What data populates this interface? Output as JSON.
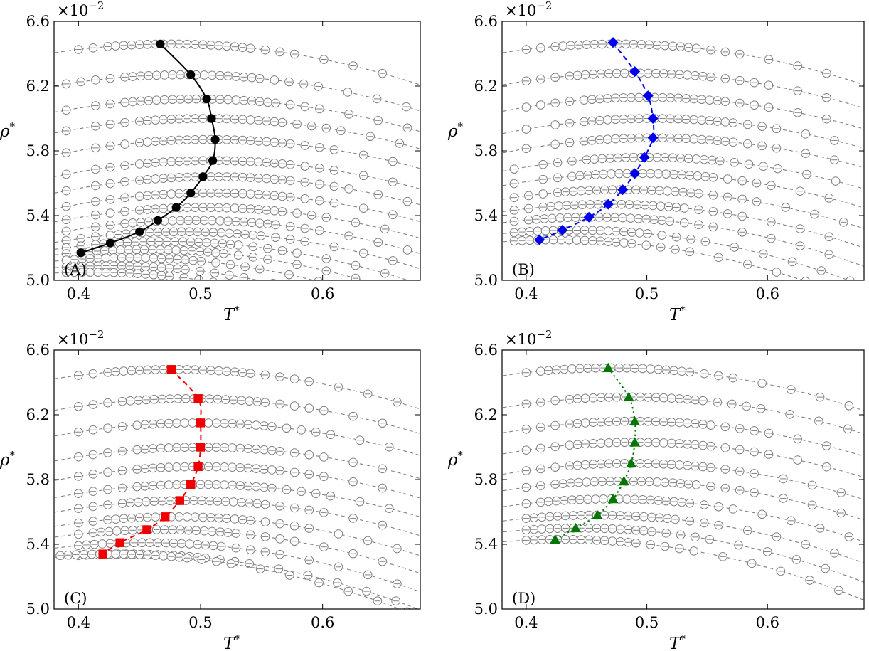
{
  "colors": {
    "background": "#ffffff",
    "frame": "#000000",
    "isochore_line": "#808080",
    "isochore_marker": "#808080"
  },
  "chart_data": [
    {
      "type": "line",
      "panel_label": "(A)",
      "xlabel_main": "T",
      "xlabel_sup": "*",
      "ylabel_main": "ρ",
      "ylabel_sup": "*",
      "axis_multiplier": "×10",
      "axis_multiplier_exp": "−2",
      "xlim": [
        0.38,
        0.68
      ],
      "ylim": [
        5.0,
        6.6
      ],
      "xticks": [
        0.4,
        0.5,
        0.6
      ],
      "xtick_labels": [
        "0.4",
        "0.5",
        "0.6"
      ],
      "yticks": [
        5.0,
        5.4,
        5.8,
        6.2,
        6.6
      ],
      "ytick_labels": [
        "5.0",
        "5.4",
        "5.8",
        "6.2",
        "6.6"
      ],
      "grid": false,
      "isochores": {
        "t_peak": [
          0.475,
          0.487,
          0.497,
          0.503,
          0.507,
          0.509,
          0.51,
          0.508,
          0.502,
          0.495,
          0.485,
          0.47,
          0.455,
          0.44,
          0.425,
          0.41
        ],
        "rho_peak": [
          6.46,
          6.27,
          6.12,
          6.0,
          5.87,
          5.74,
          5.64,
          5.54,
          5.45,
          5.37,
          5.3,
          5.24,
          5.19,
          5.14,
          5.09,
          5.05
        ],
        "curvature": 6.0,
        "markers_start_x": [
          0.4,
          0.39,
          0.39,
          0.39,
          0.39,
          0.39,
          0.39,
          0.39,
          0.39,
          0.39,
          0.39,
          0.39,
          0.39,
          0.39,
          0.39,
          0.39
        ],
        "markers_end_x": 0.67,
        "marker_style": "circle-open-dash"
      },
      "highlight": {
        "marker": "circle",
        "color": "#000000",
        "line_style": "solid",
        "points": [
          [
            0.467,
            6.46
          ],
          [
            0.492,
            6.27
          ],
          [
            0.505,
            6.12
          ],
          [
            0.509,
            6.0
          ],
          [
            0.512,
            5.87
          ],
          [
            0.51,
            5.74
          ],
          [
            0.502,
            5.64
          ],
          [
            0.492,
            5.54
          ],
          [
            0.48,
            5.45
          ],
          [
            0.465,
            5.37
          ],
          [
            0.45,
            5.3
          ],
          [
            0.426,
            5.23
          ],
          [
            0.402,
            5.17
          ]
        ]
      }
    },
    {
      "type": "line",
      "panel_label": "(B)",
      "xlabel_main": "T",
      "xlabel_sup": "*",
      "ylabel_main": "ρ",
      "ylabel_sup": "*",
      "axis_multiplier": "×10",
      "axis_multiplier_exp": "−2",
      "xlim": [
        0.38,
        0.68
      ],
      "ylim": [
        5.0,
        6.6
      ],
      "xticks": [
        0.4,
        0.5,
        0.6
      ],
      "xtick_labels": [
        "0.4",
        "0.5",
        "0.6"
      ],
      "yticks": [
        5.0,
        5.4,
        5.8,
        6.2,
        6.6
      ],
      "ytick_labels": [
        "5.0",
        "5.4",
        "5.8",
        "6.2",
        "6.6"
      ],
      "grid": false,
      "isochores": {
        "t_peak": [
          0.475,
          0.49,
          0.5,
          0.505,
          0.505,
          0.5,
          0.492,
          0.48,
          0.468,
          0.455,
          0.44,
          0.425
        ],
        "rho_peak": [
          6.46,
          6.28,
          6.13,
          6.0,
          5.88,
          5.76,
          5.66,
          5.56,
          5.47,
          5.39,
          5.31,
          5.25
        ],
        "curvature": 6.0,
        "markers_start_x": [
          0.4,
          0.4,
          0.4,
          0.4,
          0.4,
          0.39,
          0.39,
          0.39,
          0.39,
          0.39,
          0.39,
          0.39
        ],
        "markers_end_x": 0.67,
        "marker_style": "circle-open-dash"
      },
      "highlight": {
        "marker": "diamond",
        "color": "#0000ee",
        "line_style": "dashed",
        "points": [
          [
            0.472,
            6.47
          ],
          [
            0.49,
            6.29
          ],
          [
            0.501,
            6.14
          ],
          [
            0.505,
            6.0
          ],
          [
            0.505,
            5.88
          ],
          [
            0.498,
            5.76
          ],
          [
            0.49,
            5.66
          ],
          [
            0.48,
            5.56
          ],
          [
            0.468,
            5.47
          ],
          [
            0.452,
            5.39
          ],
          [
            0.43,
            5.31
          ],
          [
            0.411,
            5.25
          ]
        ]
      }
    },
    {
      "type": "line",
      "panel_label": "(C)",
      "xlabel_main": "T",
      "xlabel_sup": "*",
      "ylabel_main": "ρ",
      "ylabel_sup": "*",
      "axis_multiplier": "×10",
      "axis_multiplier_exp": "−2",
      "xlim": [
        0.38,
        0.68
      ],
      "ylim": [
        5.0,
        6.6
      ],
      "xticks": [
        0.4,
        0.5,
        0.6
      ],
      "xtick_labels": [
        "0.4",
        "0.5",
        "0.6"
      ],
      "yticks": [
        5.0,
        5.4,
        5.8,
        6.2,
        6.6
      ],
      "ytick_labels": [
        "5.0",
        "5.4",
        "5.8",
        "6.2",
        "6.6"
      ],
      "grid": false,
      "isochores": {
        "t_peak": [
          0.478,
          0.49,
          0.497,
          0.5,
          0.5,
          0.497,
          0.49,
          0.48,
          0.468,
          0.455,
          0.44,
          0.425
        ],
        "rho_peak": [
          6.48,
          6.3,
          6.15,
          6.0,
          5.88,
          5.77,
          5.67,
          5.57,
          5.49,
          5.41,
          5.34,
          5.34
        ],
        "curvature": 6.0,
        "markers_start_x": [
          0.4,
          0.4,
          0.4,
          0.4,
          0.4,
          0.4,
          0.4,
          0.4,
          0.4,
          0.4,
          0.4,
          0.385
        ],
        "markers_end_x": 0.67,
        "marker_style": "circle-open-dash"
      },
      "highlight": {
        "marker": "square",
        "color": "#ee0000",
        "line_style": "dashed",
        "points": [
          [
            0.476,
            6.48
          ],
          [
            0.498,
            6.3
          ],
          [
            0.5,
            6.15
          ],
          [
            0.5,
            6.0
          ],
          [
            0.498,
            5.88
          ],
          [
            0.492,
            5.77
          ],
          [
            0.483,
            5.67
          ],
          [
            0.471,
            5.57
          ],
          [
            0.456,
            5.49
          ],
          [
            0.434,
            5.41
          ],
          [
            0.42,
            5.34
          ]
        ]
      }
    },
    {
      "type": "line",
      "panel_label": "(D)",
      "xlabel_main": "T",
      "xlabel_sup": "*",
      "ylabel_main": "ρ",
      "ylabel_sup": "*",
      "axis_multiplier": "×10",
      "axis_multiplier_exp": "−2",
      "xlim": [
        0.38,
        0.68
      ],
      "ylim": [
        5.0,
        6.6
      ],
      "xticks": [
        0.4,
        0.5,
        0.6
      ],
      "xtick_labels": [
        "0.4",
        "0.5",
        "0.6"
      ],
      "yticks": [
        5.0,
        5.4,
        5.8,
        6.2,
        6.6
      ],
      "ytick_labels": [
        "5.0",
        "5.4",
        "5.8",
        "6.2",
        "6.6"
      ],
      "grid": false,
      "isochores": {
        "t_peak": [
          0.47,
          0.485,
          0.49,
          0.49,
          0.487,
          0.48,
          0.47,
          0.458,
          0.444,
          0.43
        ],
        "rho_peak": [
          6.49,
          6.31,
          6.16,
          6.03,
          5.9,
          5.79,
          5.68,
          5.58,
          5.5,
          5.43
        ],
        "curvature": 6.0,
        "markers_start_x": [
          0.4,
          0.4,
          0.4,
          0.4,
          0.4,
          0.4,
          0.4,
          0.4,
          0.4,
          0.4
        ],
        "markers_end_x": 0.67,
        "marker_style": "circle-open-dash"
      },
      "highlight": {
        "marker": "triangle",
        "color": "#007700",
        "line_style": "dotted",
        "points": [
          [
            0.468,
            6.49
          ],
          [
            0.485,
            6.31
          ],
          [
            0.49,
            6.16
          ],
          [
            0.49,
            6.03
          ],
          [
            0.487,
            5.9
          ],
          [
            0.481,
            5.79
          ],
          [
            0.472,
            5.68
          ],
          [
            0.459,
            5.58
          ],
          [
            0.441,
            5.5
          ],
          [
            0.424,
            5.43
          ]
        ]
      }
    }
  ]
}
